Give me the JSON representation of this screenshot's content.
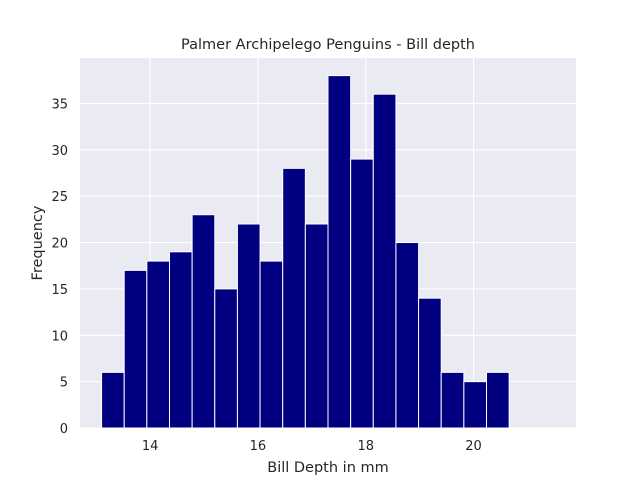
{
  "chart_data": {
    "type": "bar",
    "title": "Palmer Archipelego Penguins - Bill depth",
    "xlabel": "Bill Depth in mm",
    "ylabel": "Frequency",
    "xlim": [
      12.7,
      21.9
    ],
    "ylim": [
      0,
      39.9
    ],
    "xticks": [
      14,
      16,
      18,
      20
    ],
    "yticks": [
      0,
      5,
      10,
      15,
      20,
      25,
      30,
      35
    ],
    "grid": true,
    "bar_color": "#000080",
    "background_color": "#eaeaf2",
    "bins": {
      "start": 13.1,
      "width": 0.42,
      "counts": [
        6,
        17,
        18,
        19,
        23,
        15,
        22,
        18,
        28,
        22,
        38,
        29,
        36,
        20,
        14,
        6,
        5,
        6
      ]
    }
  }
}
